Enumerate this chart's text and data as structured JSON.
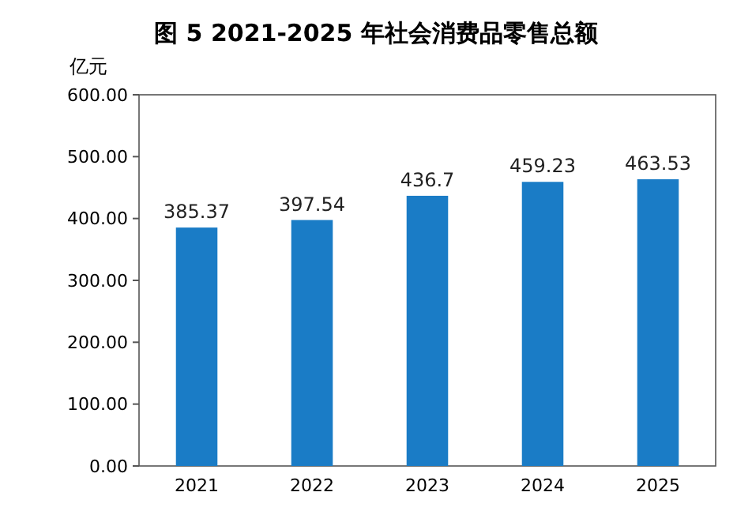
{
  "chart_data": {
    "type": "bar",
    "title": "图 5 2021-2025 年社会消费品零售总额",
    "ylabel": "亿元",
    "categories": [
      "2021",
      "2022",
      "2023",
      "2024",
      "2025"
    ],
    "values": [
      385.37,
      397.54,
      436.7,
      459.23,
      463.53
    ],
    "color": "#1a7cc6",
    "ylim": [
      0,
      600
    ],
    "yticks": [
      {
        "value": 0,
        "label": "0.00"
      },
      {
        "value": 100,
        "label": "100.00"
      },
      {
        "value": 200,
        "label": "200.00"
      },
      {
        "value": 300,
        "label": "300.00"
      },
      {
        "value": 400,
        "label": "400.00"
      },
      {
        "value": 500,
        "label": "500.00"
      },
      {
        "value": 600,
        "label": "600.00"
      }
    ],
    "data_labels": true,
    "grid": false
  }
}
